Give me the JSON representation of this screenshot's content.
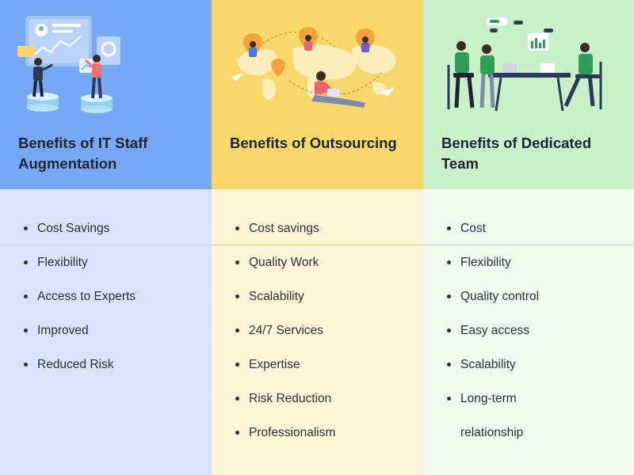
{
  "columns": [
    {
      "title": "Benefits of IT Staff Augmentation",
      "illustration": "people-analyzing-dashboard-illustration",
      "header_color": "#76a8f3",
      "body_color": "#d8e6fb",
      "items": [
        "Cost Savings",
        "Flexibility",
        "Access to Experts",
        "Improved",
        "Reduced Risk"
      ]
    },
    {
      "title": "Benefits of Outsourcing",
      "illustration": "world-map-remote-workers-illustration",
      "header_color": "#f8d86a",
      "body_color": "#fdf5d8",
      "items": [
        "Cost savings",
        "Quality Work",
        "Scalability",
        "24/7 Services",
        "Expertise",
        "Risk Reduction",
        "Professionalism"
      ]
    },
    {
      "title": "Benefits of Dedicated Team",
      "illustration": "team-meeting-at-table-illustration",
      "header_color": "#c9f0c9",
      "body_color": "#eefaee",
      "items": [
        "Cost",
        "Flexibility",
        "Quality control",
        "Easy access",
        "Scalability",
        "Long-term",
        "relationship"
      ]
    }
  ],
  "no_bullet_items": [
    [],
    [],
    [
      6
    ]
  ]
}
